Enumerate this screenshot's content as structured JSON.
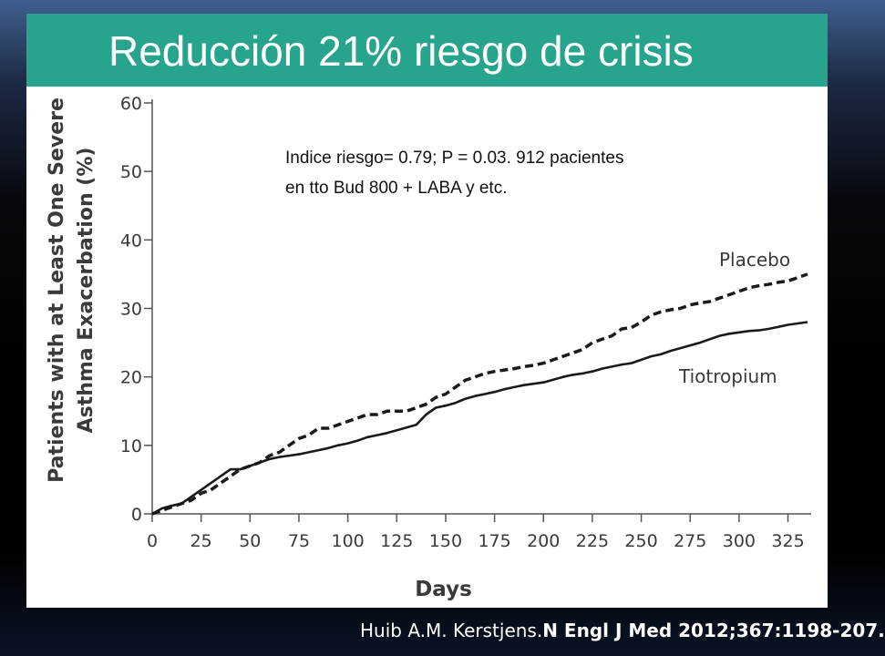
{
  "slide": {
    "title": "Reducción 21% riesgo de crisis",
    "citation_authors": "Huib A.M. Kerstjens.",
    "citation_journal": "N Engl J Med 2012;367:1198-207."
  },
  "colors": {
    "title_bar": "#26a48c",
    "title_text": "#ffffff",
    "series_line": "#1a1a1a",
    "axis_text": "#3a3a3a"
  },
  "chart_data": {
    "type": "line",
    "title": "",
    "xlabel": "Days",
    "ylabel_line1": "Patients with at Least One Severe",
    "ylabel_line2": "Asthma Exacerbation (%)",
    "xlim": [
      0,
      335
    ],
    "ylim": [
      0,
      60
    ],
    "x_ticks": [
      0,
      25,
      50,
      75,
      100,
      125,
      150,
      175,
      200,
      225,
      250,
      275,
      300,
      325
    ],
    "y_ticks": [
      0,
      10,
      20,
      30,
      40,
      50,
      60
    ],
    "annotation_line1": "Indice riesgo= 0.79; P = 0.03. 912 pacientes",
    "annotation_line2": "en tto Bud 800 + LABA y etc.",
    "series": [
      {
        "name": "Placebo",
        "style": "dashed",
        "x": [
          0,
          5,
          10,
          15,
          20,
          25,
          30,
          35,
          40,
          45,
          50,
          55,
          60,
          65,
          70,
          75,
          80,
          85,
          90,
          95,
          100,
          105,
          110,
          115,
          120,
          125,
          130,
          135,
          140,
          145,
          150,
          155,
          160,
          165,
          170,
          175,
          180,
          185,
          190,
          195,
          200,
          205,
          210,
          215,
          220,
          225,
          230,
          235,
          240,
          245,
          250,
          255,
          260,
          265,
          270,
          275,
          280,
          285,
          290,
          295,
          300,
          305,
          310,
          315,
          320,
          325,
          330,
          335
        ],
        "y": [
          0,
          0.5,
          1,
          1.5,
          2,
          3,
          3.5,
          4.5,
          5.5,
          6.5,
          7,
          7.5,
          8.5,
          9,
          10,
          11,
          11.5,
          12.5,
          12.5,
          13,
          13.5,
          14,
          14.5,
          14.5,
          15,
          15,
          15,
          15.5,
          16,
          17,
          17.5,
          18.5,
          19.5,
          20,
          20.5,
          20.8,
          21,
          21.2,
          21.5,
          21.7,
          22,
          22.5,
          23,
          23.5,
          24,
          25,
          25.5,
          26,
          27,
          27.2,
          28,
          29,
          29.5,
          29.8,
          30,
          30.5,
          30.8,
          31,
          31.5,
          32,
          32.5,
          33,
          33.3,
          33.5,
          33.8,
          34,
          34.5,
          35
        ]
      },
      {
        "name": "Tiotropium",
        "style": "solid",
        "x": [
          0,
          5,
          10,
          15,
          20,
          25,
          30,
          35,
          40,
          45,
          50,
          55,
          60,
          65,
          70,
          75,
          80,
          85,
          90,
          95,
          100,
          105,
          110,
          115,
          120,
          125,
          130,
          135,
          140,
          145,
          150,
          155,
          160,
          165,
          170,
          175,
          180,
          185,
          190,
          195,
          200,
          205,
          210,
          215,
          220,
          225,
          230,
          235,
          240,
          245,
          250,
          255,
          260,
          265,
          270,
          275,
          280,
          285,
          290,
          295,
          300,
          305,
          310,
          315,
          320,
          325,
          330,
          335
        ],
        "y": [
          0,
          0.8,
          1.2,
          1.5,
          2.5,
          3.5,
          4.5,
          5.5,
          6.5,
          6.5,
          7,
          7.5,
          8,
          8.3,
          8.5,
          8.7,
          9,
          9.3,
          9.6,
          10,
          10.3,
          10.7,
          11.2,
          11.5,
          11.8,
          12.2,
          12.6,
          13,
          14.5,
          15.5,
          15.8,
          16.2,
          16.8,
          17.2,
          17.5,
          17.8,
          18.2,
          18.5,
          18.8,
          19,
          19.2,
          19.6,
          20,
          20.3,
          20.5,
          20.8,
          21.2,
          21.5,
          21.8,
          22,
          22.5,
          23,
          23.3,
          23.8,
          24.2,
          24.6,
          25,
          25.5,
          26,
          26.3,
          26.5,
          26.7,
          26.8,
          27,
          27.3,
          27.6,
          27.8,
          28
        ]
      }
    ]
  }
}
